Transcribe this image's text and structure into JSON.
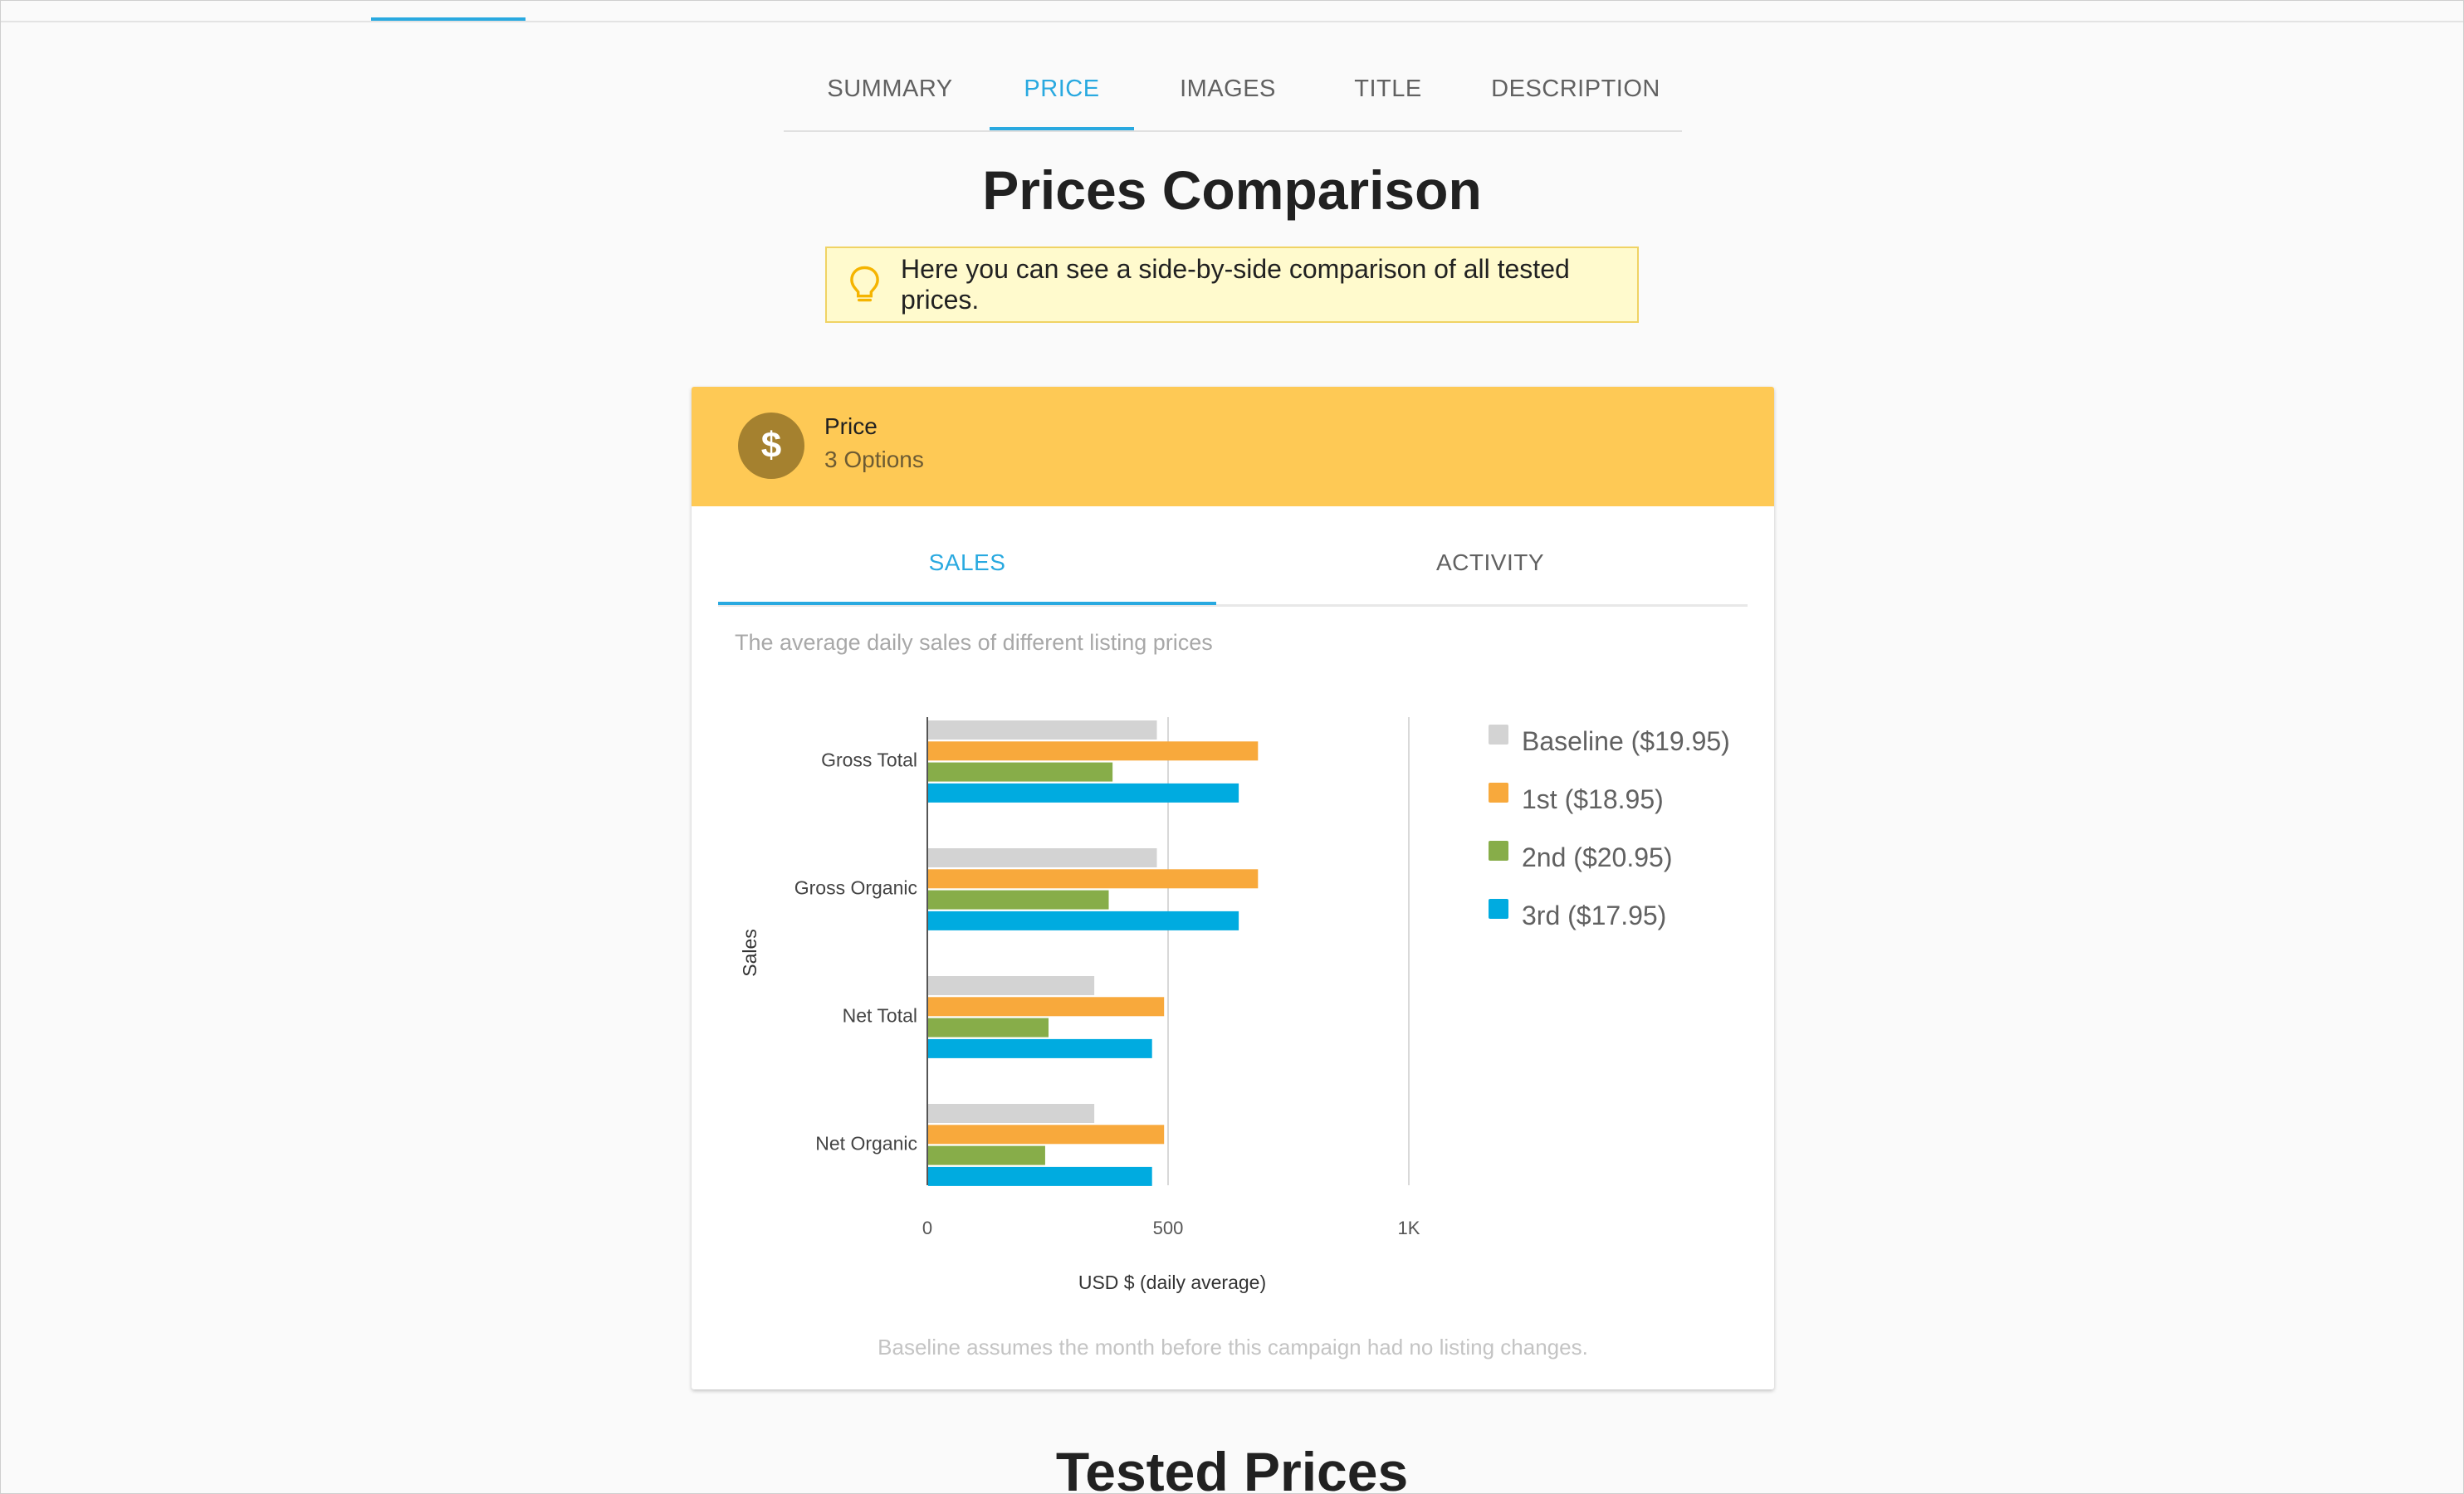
{
  "tabs": [
    {
      "label": "SUMMARY",
      "active": false
    },
    {
      "label": "PRICE",
      "active": true
    },
    {
      "label": "IMAGES",
      "active": false
    },
    {
      "label": "TITLE",
      "active": false
    },
    {
      "label": "DESCRIPTION",
      "active": false
    }
  ],
  "page_title": "Prices Comparison",
  "tip": {
    "icon": "lightbulb-icon",
    "text": "Here you can see a side-by-side comparison of all tested prices."
  },
  "card": {
    "icon": "dollar-icon",
    "icon_glyph": "$",
    "title": "Price",
    "subtitle": "3 Options",
    "tabs": [
      {
        "label": "SALES",
        "active": true
      },
      {
        "label": "ACTIVITY",
        "active": false
      }
    ],
    "chart_description": "The average daily sales of different listing prices",
    "footer_note": "Baseline assumes the month before this campaign had no listing changes."
  },
  "chart_data": {
    "type": "bar",
    "orientation": "horizontal",
    "categories": [
      "Gross Total",
      "Gross Organic",
      "Net Total",
      "Net Organic"
    ],
    "series": [
      {
        "name": "Baseline ($19.95)",
        "color": "#d3d3d3",
        "values": [
          475,
          475,
          345,
          345
        ]
      },
      {
        "name": "1st ($18.95)",
        "color": "#f8a93c",
        "values": [
          685,
          685,
          490,
          490
        ]
      },
      {
        "name": "2nd ($20.95)",
        "color": "#87ad49",
        "values": [
          383,
          375,
          250,
          243
        ]
      },
      {
        "name": "3rd ($17.95)",
        "color": "#00abe0",
        "values": [
          645,
          645,
          465,
          465
        ]
      }
    ],
    "xlabel": "USD $ (daily average)",
    "ylabel": "Sales",
    "xlim": [
      0,
      1000
    ],
    "xticks": [
      "0",
      "500",
      "1K"
    ],
    "legend_position": "right",
    "grid": true
  },
  "section_title": "Tested Prices"
}
